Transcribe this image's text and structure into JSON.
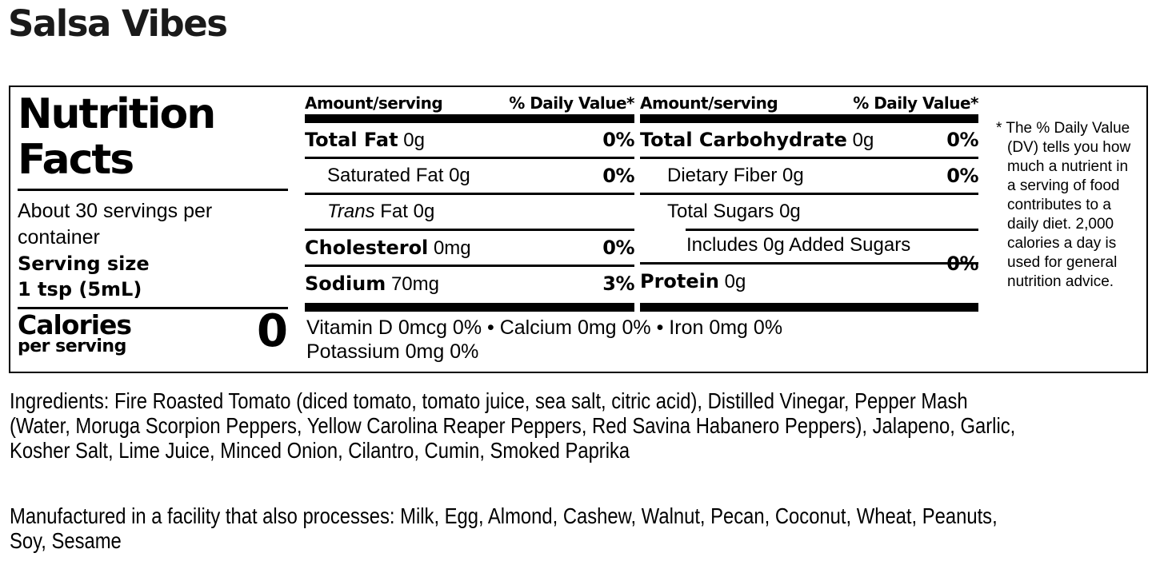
{
  "page": {
    "title": "Salsa Vibes"
  },
  "colors": {
    "text": "#000000",
    "title_text": "#1a1a1a",
    "border": "#000000",
    "background": "#ffffff"
  },
  "nutrition_label": {
    "title_line1": "Nutrition",
    "title_line2": "Facts",
    "servings_per_container": "About 30 servings per container",
    "serving_size_label": "Serving size",
    "serving_size_value": "1 tsp (5mL)",
    "calories_label": "Calories",
    "calories_sublabel": "per serving",
    "calories_value": "0",
    "columns": {
      "amount_header": "Amount/serving",
      "dv_header": "% Daily Value*"
    },
    "mid": {
      "total_fat_name": "Total Fat",
      "total_fat_amount": "0g",
      "total_fat_dv": "0%",
      "saturated_fat": "Saturated Fat 0g",
      "saturated_fat_dv": "0%",
      "trans_fat_word": "Trans",
      "trans_fat_rest": "Fat 0g",
      "cholesterol_name": "Cholesterol",
      "cholesterol_amount": "0mg",
      "cholesterol_dv": "0%",
      "sodium_name": "Sodium",
      "sodium_amount": "70mg",
      "sodium_dv": "3%"
    },
    "right": {
      "carb_name": "Total Carbohydrate",
      "carb_amount": "0g",
      "carb_dv": "0%",
      "dietary_fiber": "Dietary Fiber 0g",
      "dietary_fiber_dv": "0%",
      "total_sugars": "Total Sugars 0g",
      "added_sugars": "Includes 0g Added Sugars",
      "added_sugars_dv": "0%",
      "protein_name": "Protein",
      "protein_amount": "0g"
    },
    "micronutrients_line1": "Vitamin D 0mcg 0% • Calcium 0mg 0% • Iron 0mg 0%",
    "micronutrients_line2": "Potassium 0mg 0%",
    "footnote_marker": "*",
    "footnote_lines": [
      "The % Daily Value",
      "(DV) tells you how",
      "much a nutrient in",
      "a serving of food",
      "contributes to a",
      "daily diet. 2,000",
      "calories a day is",
      "used for general",
      "nutrition advice."
    ]
  },
  "ingredients": {
    "lines": [
      "Ingredients: Fire Roasted Tomato (diced tomato, tomato juice, sea salt, citric acid), Distilled Vinegar, Pepper Mash",
      "(Water, Moruga Scorpion Peppers, Yellow Carolina Reaper Peppers, Red Savina Habanero Peppers), Jalapeno, Garlic,",
      "Kosher Salt, Lime Juice, Minced Onion, Cilantro, Cumin, Smoked Paprika"
    ]
  },
  "allergens": {
    "lines": [
      "Manufactured in a facility that also processes: Milk, Egg, Almond, Cashew, Walnut, Pecan, Coconut, Wheat, Peanuts,",
      "Soy, Sesame"
    ]
  }
}
